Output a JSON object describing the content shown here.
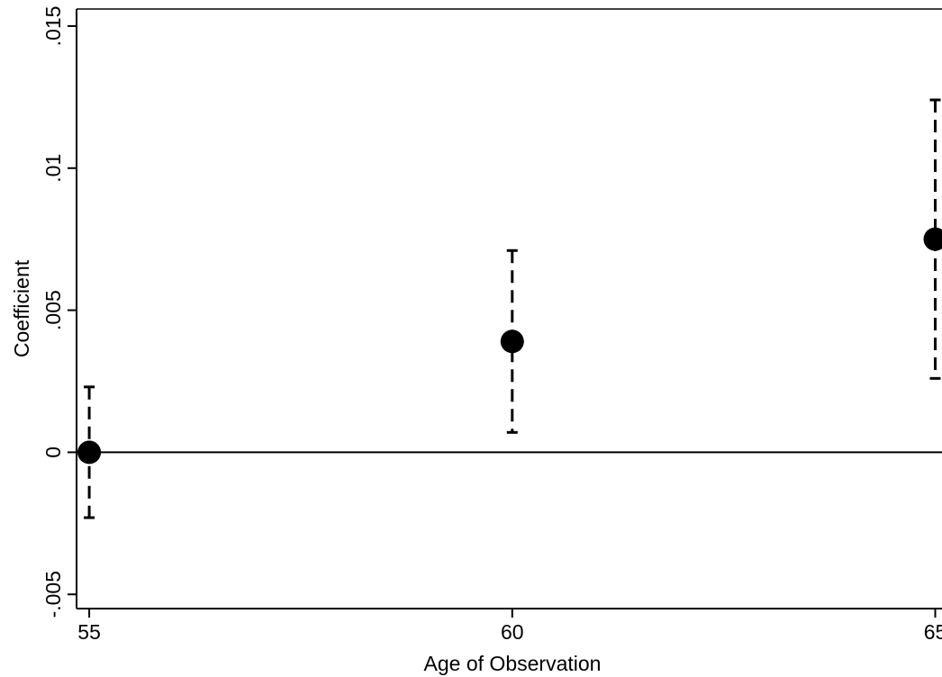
{
  "chart_data": {
    "type": "scatter",
    "title": "",
    "xlabel": "Age of Observation",
    "ylabel": "Coefficient",
    "x_ticks": [
      {
        "value": 55,
        "label": "55"
      },
      {
        "value": 60,
        "label": "60"
      },
      {
        "value": 65,
        "label": "65"
      }
    ],
    "y_ticks": [
      {
        "value": -0.005,
        "label": "-.005"
      },
      {
        "value": 0,
        "label": "0"
      },
      {
        "value": 0.005,
        "label": ".005"
      },
      {
        "value": 0.01,
        "label": ".01"
      },
      {
        "value": 0.015,
        "label": ".015"
      }
    ],
    "ylim": [
      -0.0055,
      0.0156
    ],
    "xlim": [
      54.85,
      65.08
    ],
    "reference_line_y": 0,
    "grid": false,
    "points": [
      {
        "x": 55,
        "y": 0.0,
        "ci_low": -0.0023,
        "ci_high": 0.0023
      },
      {
        "x": 60,
        "y": 0.0039,
        "ci_low": 0.0007,
        "ci_high": 0.0071
      },
      {
        "x": 65,
        "y": 0.0075,
        "ci_low": 0.0026,
        "ci_high": 0.0124
      }
    ],
    "colors": {
      "marker": "#000000",
      "line": "#000000"
    }
  }
}
